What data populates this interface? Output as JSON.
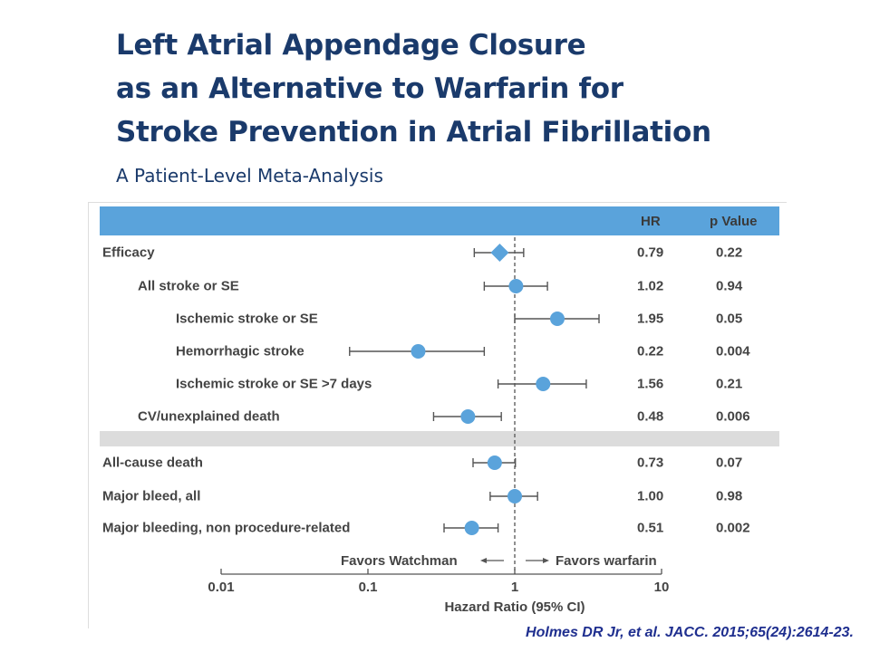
{
  "title_lines": [
    "Left Atrial Appendage Closure",
    "as an Alternative to Warfarin for",
    "Stroke Prevention in Atrial Fibrillation"
  ],
  "subtitle": "A Patient-Level Meta-Analysis",
  "citation": "Holmes DR Jr, et al. JACC. 2015;65(24):2614-23.",
  "colors": {
    "header": "#5aa3db",
    "marker": "#5aa3db",
    "title": "#1a3a6b",
    "band": "#dcdcdc"
  },
  "chart_data": {
    "type": "forest",
    "columns": {
      "hr": "HR",
      "p": "p Value"
    },
    "xlabel": "Hazard Ratio (95% CI)",
    "xscale": "log",
    "xlim": [
      0.01,
      10
    ],
    "xticks": [
      "0.01",
      "0.1",
      "1",
      "10"
    ],
    "reference_line": 1,
    "favors_left": "Favors Watchman",
    "favors_right": "Favors warfarin",
    "rows": [
      {
        "label": "Efficacy",
        "indent": 0,
        "hr": 0.79,
        "hr_text": "0.79",
        "p": "0.22",
        "lo": 0.53,
        "hi": 1.15,
        "marker": "diamond"
      },
      {
        "label": "All stroke or SE",
        "indent": 1,
        "hr": 1.02,
        "hr_text": "1.02",
        "p": "0.94",
        "lo": 0.62,
        "hi": 1.67,
        "marker": "circle"
      },
      {
        "label": "Ischemic stroke or SE",
        "indent": 2,
        "hr": 1.95,
        "hr_text": "1.95",
        "p": "0.05",
        "lo": 1.0,
        "hi": 3.75,
        "marker": "circle"
      },
      {
        "label": "Hemorrhagic stroke",
        "indent": 2,
        "hr": 0.22,
        "hr_text": "0.22",
        "p": "0.004",
        "lo": 0.075,
        "hi": 0.62,
        "marker": "circle"
      },
      {
        "label": "Ischemic stroke or SE >7 days",
        "indent": 2,
        "hr": 1.56,
        "hr_text": "1.56",
        "p": "0.21",
        "lo": 0.77,
        "hi": 3.07,
        "marker": "circle"
      },
      {
        "label": "CV/unexplained death",
        "indent": 1,
        "hr": 0.48,
        "hr_text": "0.48",
        "p": "0.006",
        "lo": 0.28,
        "hi": 0.81,
        "marker": "circle"
      },
      {
        "label": "All-cause death",
        "indent": 0,
        "hr": 0.73,
        "hr_text": "0.73",
        "p": "0.07",
        "lo": 0.52,
        "hi": 1.01,
        "marker": "circle"
      },
      {
        "label": "Major bleed, all",
        "indent": 0,
        "hr": 1.0,
        "hr_text": "1.00",
        "p": "0.98",
        "lo": 0.68,
        "hi": 1.43,
        "marker": "circle"
      },
      {
        "label": "Major bleeding, non procedure-related",
        "indent": 0,
        "hr": 0.51,
        "hr_text": "0.51",
        "p": "0.002",
        "lo": 0.33,
        "hi": 0.77,
        "marker": "circle"
      }
    ]
  }
}
